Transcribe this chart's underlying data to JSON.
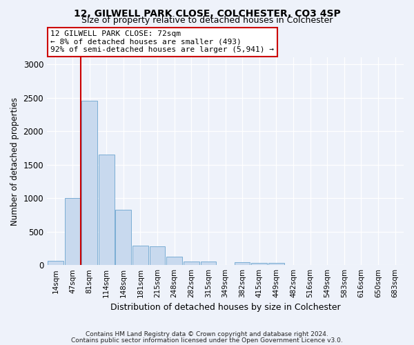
{
  "title1": "12, GILWELL PARK CLOSE, COLCHESTER, CO3 4SP",
  "title2": "Size of property relative to detached houses in Colchester",
  "xlabel": "Distribution of detached houses by size in Colchester",
  "ylabel": "Number of detached properties",
  "annotation_lines": [
    "12 GILWELL PARK CLOSE: 72sqm",
    "← 8% of detached houses are smaller (493)",
    "92% of semi-detached houses are larger (5,941) →"
  ],
  "bin_labels": [
    "14sqm",
    "47sqm",
    "81sqm",
    "114sqm",
    "148sqm",
    "181sqm",
    "215sqm",
    "248sqm",
    "282sqm",
    "315sqm",
    "349sqm",
    "382sqm",
    "415sqm",
    "449sqm",
    "482sqm",
    "516sqm",
    "549sqm",
    "583sqm",
    "616sqm",
    "650sqm",
    "683sqm"
  ],
  "bar_values": [
    60,
    1000,
    2450,
    1650,
    830,
    290,
    280,
    130,
    55,
    50,
    0,
    40,
    30,
    30,
    0,
    0,
    0,
    0,
    0,
    0,
    0
  ],
  "bar_color": "#c8d9ee",
  "bar_edge_color": "#7aadd4",
  "vline_color": "#cc0000",
  "vline_x_idx": 2,
  "annotation_box_color": "#ffffff",
  "annotation_box_edge": "#cc0000",
  "footer1": "Contains HM Land Registry data © Crown copyright and database right 2024.",
  "footer2": "Contains public sector information licensed under the Open Government Licence v3.0.",
  "ylim": [
    0,
    3100
  ],
  "yticks": [
    0,
    500,
    1000,
    1500,
    2000,
    2500,
    3000
  ],
  "background_color": "#eef2fa",
  "plot_background": "#eef2fa",
  "title1_fontsize": 10,
  "title2_fontsize": 9
}
